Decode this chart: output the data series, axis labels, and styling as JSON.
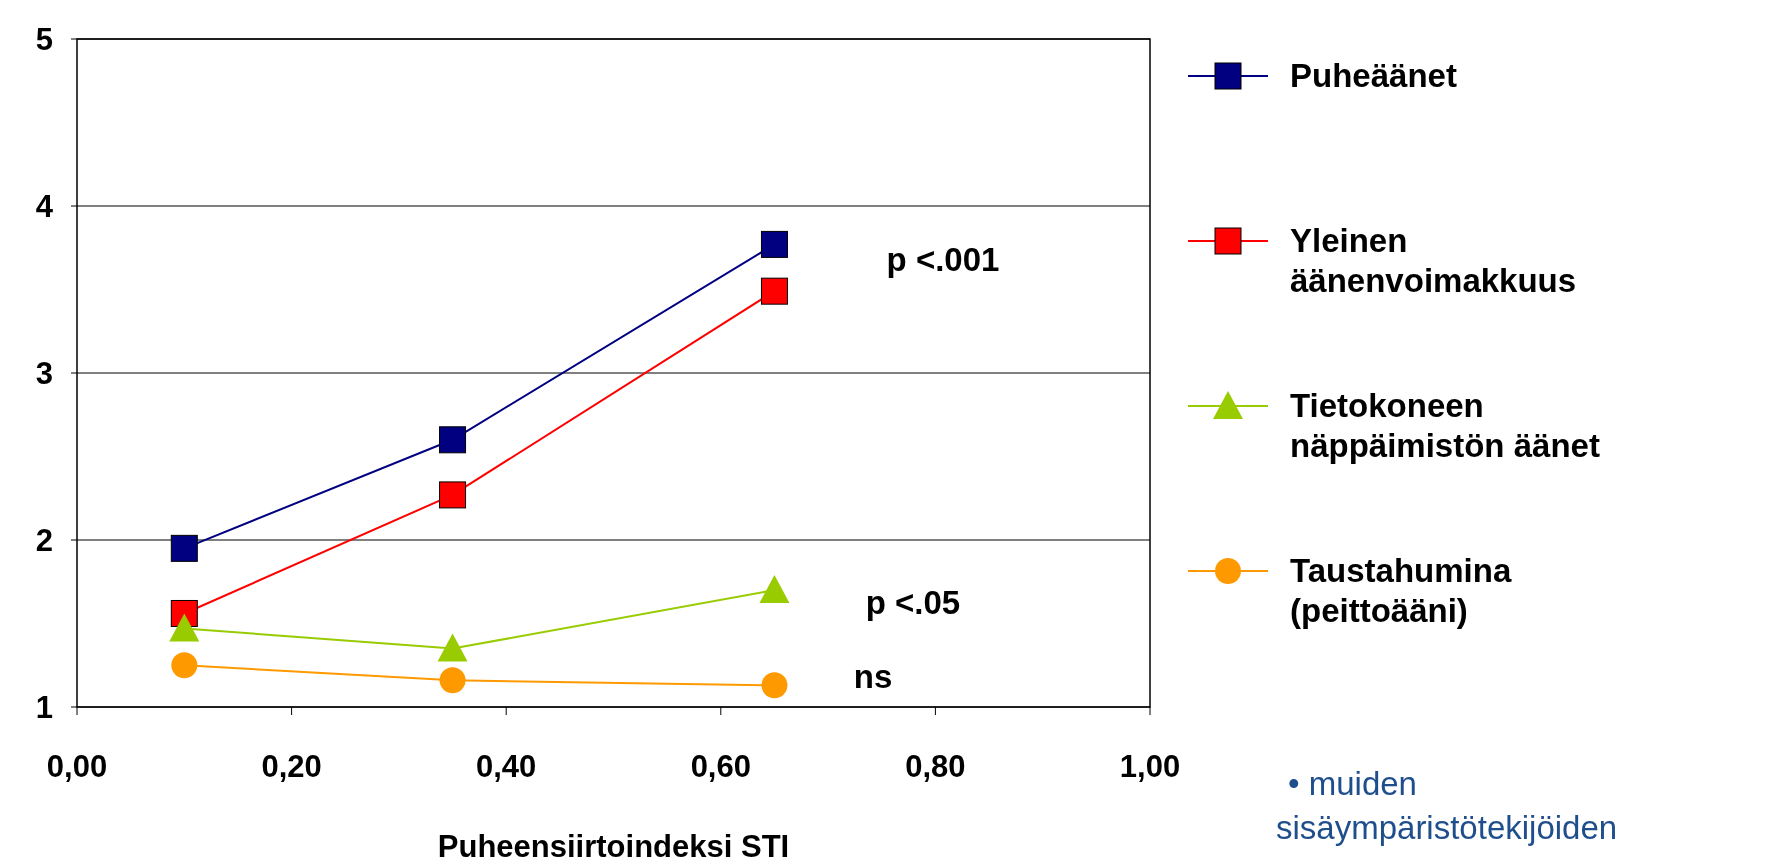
{
  "chart_data": {
    "type": "line",
    "xlabel": "Puheensiirtoindeksi STI",
    "xlim": [
      0,
      1
    ],
    "xticks": [
      {
        "value": 0,
        "label": "0,00"
      },
      {
        "value": 0.2,
        "label": "0,20"
      },
      {
        "value": 0.4,
        "label": "0,40"
      },
      {
        "value": 0.6,
        "label": "0,60"
      },
      {
        "value": 0.8,
        "label": "0,80"
      },
      {
        "value": 1,
        "label": "1,00"
      }
    ],
    "ylim": [
      1,
      5
    ],
    "yticks": [
      1,
      2,
      3,
      4,
      5
    ],
    "grid": "y",
    "legend": "right",
    "x": [
      0.1,
      0.35,
      0.65
    ],
    "series": [
      {
        "name": "Puheäänet",
        "color": "#000080",
        "marker": "square",
        "values": [
          1.95,
          2.6,
          3.77
        ]
      },
      {
        "name": "Yleinen äänenvoimakkuus",
        "color": "#ff0000",
        "marker": "square",
        "values": [
          1.56,
          2.27,
          3.49
        ]
      },
      {
        "name": "Tietokoneen näppäimistön äänet",
        "color": "#99cc00",
        "marker": "triangle",
        "values": [
          1.47,
          1.35,
          1.7
        ]
      },
      {
        "name": "Taustahumina (peittoääni)",
        "color": "#ff9900",
        "marker": "circle",
        "values": [
          1.25,
          1.16,
          1.13
        ]
      }
    ],
    "annotations": [
      "p <.001",
      "p <.05",
      "ns",
      "• muiden sisäympäristötekijöiden"
    ]
  }
}
